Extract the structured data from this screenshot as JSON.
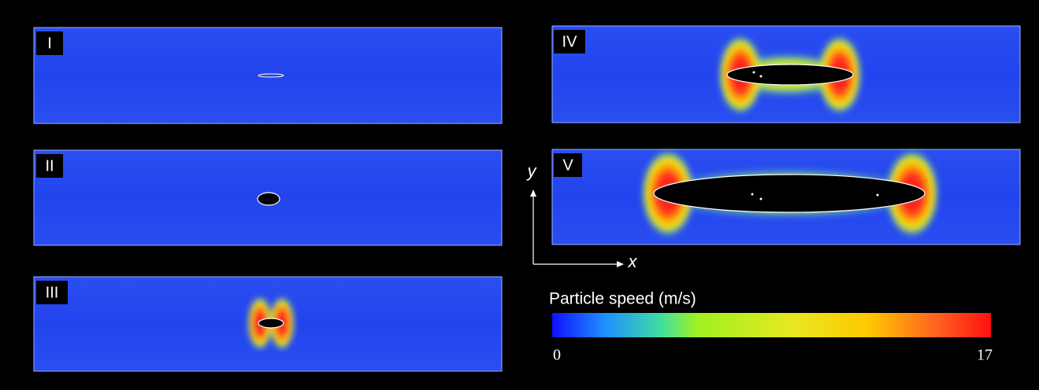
{
  "panels": [
    {
      "label": "I"
    },
    {
      "label": "II"
    },
    {
      "label": "III"
    },
    {
      "label": "IV"
    },
    {
      "label": "V"
    }
  ],
  "axes": {
    "x": "x",
    "y": "y"
  },
  "colorbar": {
    "title": "Particle speed (m/s)",
    "min": 0,
    "max": 17
  }
}
